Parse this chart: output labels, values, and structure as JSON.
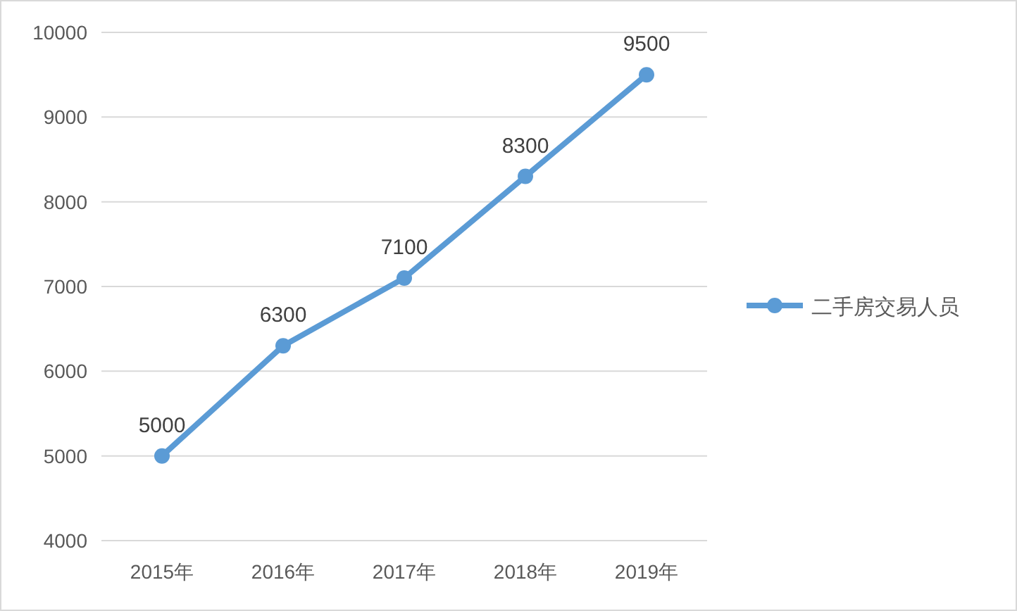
{
  "chart_data": {
    "type": "line",
    "categories": [
      "2015年",
      "2016年",
      "2017年",
      "2018年",
      "2019年"
    ],
    "series": [
      {
        "name": "二手房交易人员",
        "color": "#5b9bd5",
        "values": [
          5000,
          6300,
          7100,
          8300,
          9500
        ]
      }
    ],
    "ylim": [
      4000,
      10000
    ],
    "yticks": [
      4000,
      5000,
      6000,
      7000,
      8000,
      9000,
      10000
    ],
    "grid": "y",
    "legend": "right",
    "marker": "circle",
    "data_labels": true
  }
}
